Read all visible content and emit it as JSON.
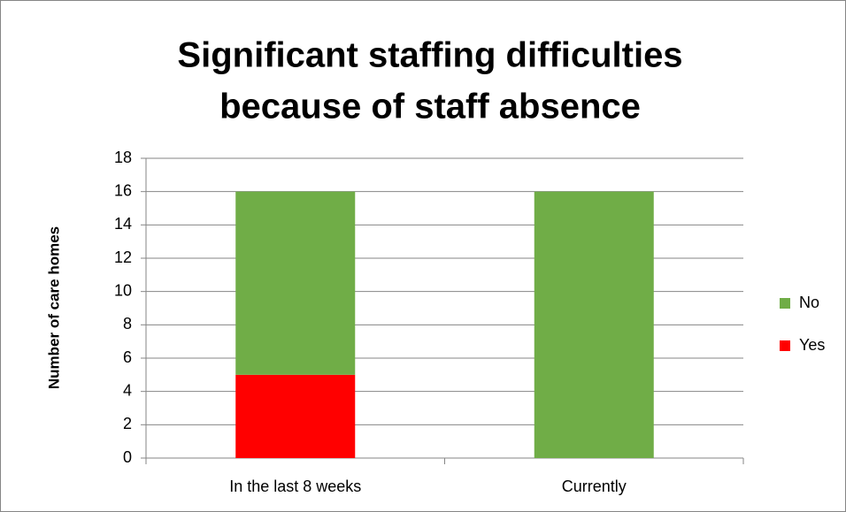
{
  "chart_data": {
    "type": "stacked_bar",
    "title": [
      "Significant staffing difficulties",
      "because of staff absence"
    ],
    "y_label": "Number of care homes",
    "categories": [
      "In the last 8 weeks",
      "Currently"
    ],
    "series": [
      {
        "name": "Yes",
        "color": "#ff0000",
        "values": [
          5,
          0
        ]
      },
      {
        "name": "No",
        "color": "#70ad47",
        "values": [
          11,
          16
        ]
      }
    ],
    "ylim": [
      0,
      18
    ],
    "yticks": [
      0,
      2,
      4,
      6,
      8,
      10,
      12,
      14,
      16,
      18
    ],
    "grid": true,
    "legend": "right"
  }
}
